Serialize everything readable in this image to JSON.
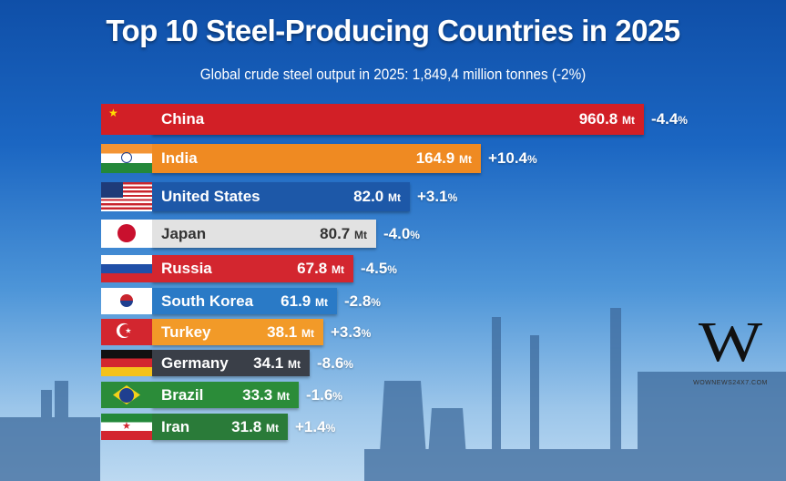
{
  "title": "Top 10 Steel-Producing Countries in 2025",
  "subtitle": "Global crude steel output in 2025: 1,849,4 million tonnes (-2%)",
  "logo": {
    "letter": "W",
    "text": "WOWNEWS24X7.COM"
  },
  "chart_data": {
    "type": "bar",
    "orientation": "horizontal",
    "title": "Top 10 Steel-Producing Countries in 2025",
    "subtitle": "Global crude steel output in 2025: 1,849,4 million tonnes (-2%)",
    "unit": "Mt",
    "categories": [
      "China",
      "India",
      "United States",
      "Japan",
      "Russia",
      "South Korea",
      "Turkey",
      "Germany",
      "Brazil",
      "Iran"
    ],
    "values": [
      960.8,
      164.9,
      82.0,
      80.7,
      67.8,
      61.9,
      38.1,
      34.1,
      33.3,
      31.8
    ],
    "value_labels": [
      "960.8",
      "164.9",
      "82.0",
      "80.7",
      "67.8",
      "61.9",
      "38.1",
      "34.1",
      "33.3",
      "31.8"
    ],
    "changes": [
      "-4.4",
      "+10.4",
      "+3.1",
      "-4.0",
      "-4.5",
      "-2.8",
      "+3.3",
      "-8.6",
      "-1.6",
      "+1.4"
    ],
    "change_unit": "%",
    "colors": [
      "#d21f26",
      "#ef8a22",
      "#1d58a8",
      "#e2e2e2",
      "#d3262f",
      "#2a7ac6",
      "#f29a28",
      "#3a3f48",
      "#2b8c39",
      "#2a7b39"
    ]
  }
}
